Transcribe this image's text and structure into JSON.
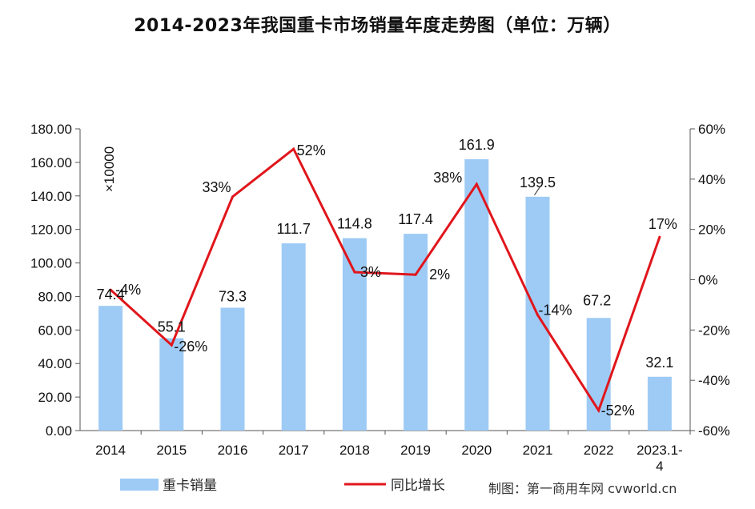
{
  "chart_data": {
    "type": "bar",
    "title": "2014-2023年我国重卡市场销量年度走势图（单位：万辆）",
    "unit_multiplier": "×10000",
    "categories": [
      "2014",
      "2015",
      "2016",
      "2017",
      "2018",
      "2019",
      "2020",
      "2021",
      "2022",
      "2023.1-4"
    ],
    "series": [
      {
        "name": "重卡销量",
        "kind": "bar",
        "axis": "left",
        "color": "#9ecbf5",
        "values": [
          74.4,
          55.1,
          73.3,
          111.7,
          114.8,
          117.4,
          161.9,
          139.5,
          67.2,
          32.1
        ],
        "labels": [
          "74.4",
          "55.1",
          "73.3",
          "111.7",
          "114.8",
          "117.4",
          "161.9",
          "139.5",
          "67.2",
          "32.1"
        ]
      },
      {
        "name": "同比增长",
        "kind": "line",
        "axis": "right",
        "color": "#e0161c",
        "values": [
          -4,
          -26,
          33,
          52,
          3,
          2,
          38,
          -14,
          -52,
          17
        ],
        "labels": [
          "-4%",
          "-26%",
          "33%",
          "52%",
          "3%",
          "2%",
          "38%",
          "-14%",
          "-52%",
          "17%"
        ]
      }
    ],
    "ylim_left": [
      0,
      180
    ],
    "yticks_left": [
      "0.00",
      "20.00",
      "40.00",
      "60.00",
      "80.00",
      "100.00",
      "120.00",
      "140.00",
      "160.00",
      "180.00"
    ],
    "ylim_right": [
      -60,
      60
    ],
    "yticks_right": [
      "-60%",
      "-40%",
      "-20%",
      "0%",
      "20%",
      "40%",
      "60%"
    ],
    "legend_position": "bottom-left"
  },
  "credit": "制图：第一商用车网  cvworld.cn"
}
